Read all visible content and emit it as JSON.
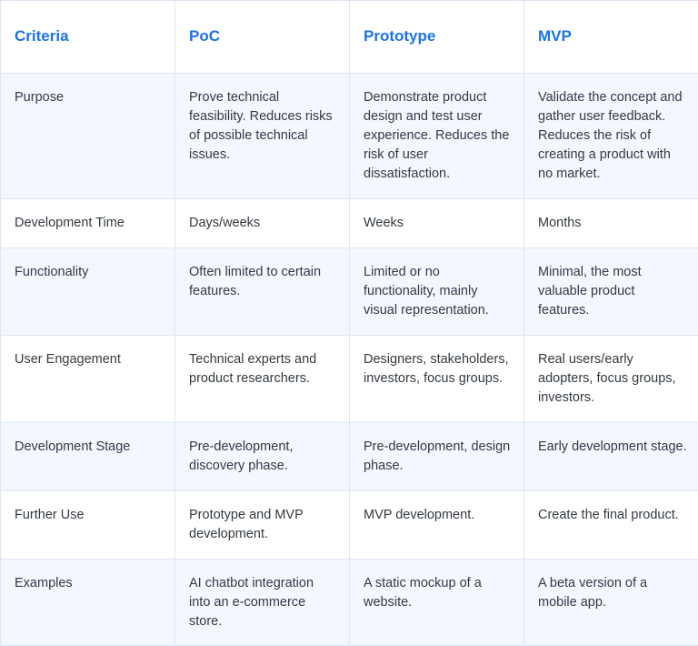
{
  "table": {
    "headers": [
      "Criteria",
      "PoC",
      "Prototype",
      "MVP"
    ],
    "rows": [
      [
        "Purpose",
        "Prove technical feasibility. Reduces risks of possible technical issues.",
        "Demonstrate product design and test user experience. Reduces the risk of user dissatisfaction.",
        "Validate the concept and gather user feedback. Reduces the risk of creating a product with no market."
      ],
      [
        "Development Time",
        "Days/weeks",
        "Weeks",
        "Months"
      ],
      [
        "Functionality",
        "Often limited to certain features.",
        "Limited or no functionality, mainly visual representation.",
        "Minimal, the most valuable product features."
      ],
      [
        "User Engagement",
        "Technical experts and product researchers.",
        "Designers, stakeholders, investors, focus groups.",
        "Real users/early adopters, focus groups, investors."
      ],
      [
        "Development Stage",
        "Pre-development, discovery phase.",
        "Pre-development, design phase.",
        "Early development stage."
      ],
      [
        "Further Use",
        "Prototype and MVP development.",
        "MVP development.",
        "Create the final product."
      ],
      [
        "Examples",
        "AI chatbot integration into an e-commerce store.",
        "A static mockup of a website.",
        "A beta version of a mobile app."
      ]
    ]
  },
  "colors": {
    "header_text": "#1a73e8",
    "body_text": "#333a40",
    "border": "#dde6f3",
    "row_tint": "#f4f8fe"
  }
}
